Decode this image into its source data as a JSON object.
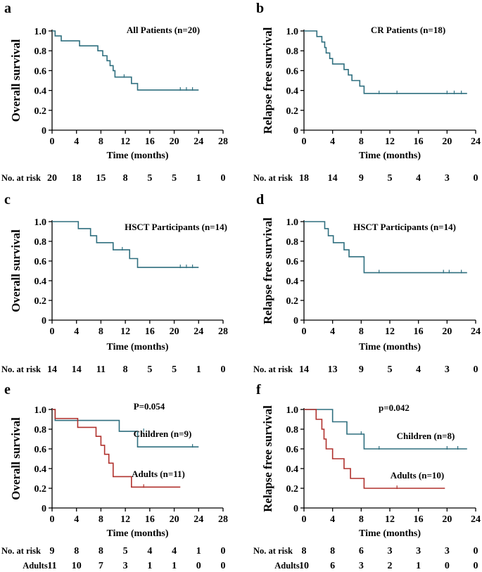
{
  "chart_data": [
    {
      "type": "line",
      "panel": "a",
      "ylabel": "Overall survival",
      "xlabel": "Time (months)",
      "xlim": [
        0,
        28
      ],
      "xticks": [
        0,
        4,
        8,
        12,
        16,
        20,
        24,
        28
      ],
      "ylim": [
        0,
        1.0
      ],
      "yticks": [
        "0",
        "0.2",
        "0.4",
        "0.6",
        "0.8",
        "1.0"
      ],
      "annotation": "All Patients (n=20)",
      "series": [
        {
          "name": "All Patients",
          "color": "#2f6f7f",
          "steps": [
            [
              0,
              1.0
            ],
            [
              0.5,
              0.95
            ],
            [
              1.5,
              0.9
            ],
            [
              4.5,
              0.85
            ],
            [
              7.5,
              0.8
            ],
            [
              8.3,
              0.75
            ],
            [
              9.0,
              0.7
            ],
            [
              9.5,
              0.65
            ],
            [
              10.0,
              0.6
            ],
            [
              10.3,
              0.535
            ],
            [
              13.0,
              0.47
            ],
            [
              14.0,
              0.405
            ],
            [
              24.0,
              0.405
            ]
          ],
          "censors": [
            [
              11.8,
              0.535
            ],
            [
              21.0,
              0.405
            ],
            [
              22.0,
              0.405
            ],
            [
              23.0,
              0.405
            ]
          ]
        }
      ],
      "risk_table": {
        "label": "No. at risk",
        "rows": [
          {
            "label": "",
            "values": [
              "20",
              "18",
              "15",
              "8",
              "5",
              "5",
              "1",
              "0"
            ]
          }
        ]
      }
    },
    {
      "type": "line",
      "panel": "b",
      "ylabel": "Relapse free survival",
      "xlabel": "Time (months)",
      "xlim": [
        0,
        24
      ],
      "xticks": [
        0,
        4,
        8,
        12,
        16,
        20,
        24
      ],
      "ylim": [
        0,
        1.0
      ],
      "yticks": [
        "0",
        "0.2",
        "0.4",
        "0.6",
        "0.8",
        "1.0"
      ],
      "annotation": "CR Patients (n=18)",
      "series": [
        {
          "name": "CR Patients",
          "color": "#2f6f7f",
          "steps": [
            [
              0,
              1.0
            ],
            [
              1.8,
              0.944
            ],
            [
              2.5,
              0.889
            ],
            [
              2.9,
              0.833
            ],
            [
              3.1,
              0.778
            ],
            [
              3.6,
              0.722
            ],
            [
              4.0,
              0.667
            ],
            [
              5.6,
              0.611
            ],
            [
              6.2,
              0.556
            ],
            [
              6.7,
              0.5
            ],
            [
              7.8,
              0.444
            ],
            [
              8.4,
              0.37
            ],
            [
              22.8,
              0.37
            ]
          ],
          "censors": [
            [
              10.5,
              0.37
            ],
            [
              13.0,
              0.37
            ],
            [
              20.0,
              0.37
            ],
            [
              21.0,
              0.37
            ],
            [
              22.0,
              0.37
            ]
          ]
        }
      ],
      "risk_table": {
        "label": "No. at risk",
        "rows": [
          {
            "label": "",
            "values": [
              "18",
              "14",
              "9",
              "5",
              "4",
              "3",
              "0"
            ]
          }
        ]
      }
    },
    {
      "type": "line",
      "panel": "c",
      "ylabel": "Overall survival",
      "xlabel": "Time (months)",
      "xlim": [
        0,
        28
      ],
      "xticks": [
        0,
        4,
        8,
        12,
        16,
        20,
        24,
        28
      ],
      "ylim": [
        0,
        1.0
      ],
      "yticks": [
        "0",
        "0.2",
        "0.4",
        "0.6",
        "0.8",
        "1.0"
      ],
      "annotation": "HSCT Participants  (n=14)",
      "series": [
        {
          "name": "HSCT Participants",
          "color": "#2f6f7f",
          "steps": [
            [
              0,
              1.0
            ],
            [
              4.3,
              0.929
            ],
            [
              6.3,
              0.857
            ],
            [
              7.3,
              0.786
            ],
            [
              10.0,
              0.714
            ],
            [
              12.7,
              0.625
            ],
            [
              14.0,
              0.535
            ],
            [
              24.0,
              0.535
            ]
          ],
          "censors": [
            [
              11.5,
              0.714
            ],
            [
              21.0,
              0.535
            ],
            [
              22.0,
              0.535
            ],
            [
              23.0,
              0.535
            ]
          ]
        }
      ],
      "risk_table": {
        "label": "No. at risk",
        "rows": [
          {
            "label": "",
            "values": [
              "14",
              "14",
              "11",
              "8",
              "5",
              "5",
              "1",
              "0"
            ]
          }
        ]
      }
    },
    {
      "type": "line",
      "panel": "d",
      "ylabel": "Relapse free survival",
      "xlabel": "Time (months)",
      "xlim": [
        0,
        24
      ],
      "xticks": [
        0,
        4,
        8,
        12,
        16,
        20,
        24
      ],
      "ylim": [
        0,
        1.0
      ],
      "yticks": [
        "0",
        "0.2",
        "0.4",
        "0.6",
        "0.8",
        "1.0"
      ],
      "annotation": "HSCT Participants (n=14)",
      "series": [
        {
          "name": "HSCT Participants",
          "color": "#2f6f7f",
          "steps": [
            [
              0,
              1.0
            ],
            [
              2.9,
              0.929
            ],
            [
              3.4,
              0.857
            ],
            [
              4.1,
              0.786
            ],
            [
              5.6,
              0.714
            ],
            [
              6.3,
              0.643
            ],
            [
              8.4,
              0.482
            ],
            [
              22.8,
              0.482
            ]
          ],
          "censors": [
            [
              10.5,
              0.482
            ],
            [
              19.5,
              0.482
            ],
            [
              20.3,
              0.482
            ],
            [
              22.0,
              0.482
            ]
          ]
        }
      ],
      "risk_table": {
        "label": "No. at risk",
        "rows": [
          {
            "label": "",
            "values": [
              "14",
              "13",
              "9",
              "5",
              "4",
              "3",
              "0"
            ]
          }
        ]
      }
    },
    {
      "type": "line",
      "panel": "e",
      "ylabel": "Overall survival",
      "xlabel": "Time (months)",
      "xlim": [
        0,
        28
      ],
      "xticks": [
        0,
        4,
        8,
        12,
        16,
        20,
        24,
        28
      ],
      "ylim": [
        0,
        1.0
      ],
      "yticks": [
        "0",
        "0.2",
        "0.4",
        "0.6",
        "0.8",
        "1.0"
      ],
      "annotation": "P=0.054",
      "series": [
        {
          "name": "Children (n=9)",
          "color": "#2f6f7f",
          "steps": [
            [
              0,
              1.0
            ],
            [
              0.5,
              0.889
            ],
            [
              11.0,
              0.778
            ],
            [
              14.0,
              0.62
            ],
            [
              24.0,
              0.62
            ]
          ],
          "censors": [
            [
              15.0,
              0.778
            ],
            [
              23.0,
              0.62
            ]
          ]
        },
        {
          "name": "Adults (n=11)",
          "color": "#b0312d",
          "steps": [
            [
              0,
              1.0
            ],
            [
              0.5,
              0.909
            ],
            [
              4.2,
              0.818
            ],
            [
              7.2,
              0.727
            ],
            [
              8.0,
              0.636
            ],
            [
              8.6,
              0.545
            ],
            [
              9.3,
              0.455
            ],
            [
              10.0,
              0.318
            ],
            [
              13.0,
              0.212
            ],
            [
              21.0,
              0.212
            ]
          ],
          "censors": [
            [
              15.0,
              0.212
            ]
          ]
        }
      ],
      "risk_table": {
        "label": "No. at risk",
        "rows": [
          {
            "label": "",
            "values": [
              "9",
              "8",
              "8",
              "5",
              "4",
              "4",
              "1",
              "0"
            ]
          },
          {
            "label": "Adults",
            "values": [
              "11",
              "10",
              "7",
              "3",
              "1",
              "1",
              "0",
              "0"
            ]
          }
        ]
      }
    },
    {
      "type": "line",
      "panel": "f",
      "ylabel": "Relapse free survival",
      "xlabel": "Time (months)",
      "xlim": [
        0,
        24
      ],
      "xticks": [
        0,
        4,
        8,
        12,
        16,
        20,
        24
      ],
      "ylim": [
        0,
        1.0
      ],
      "yticks": [
        "0",
        "0.2",
        "0.4",
        "0.6",
        "0.8",
        "1.0"
      ],
      "annotation": "p=0.042",
      "series": [
        {
          "name": "Children (n=8)",
          "color": "#2f6f7f",
          "steps": [
            [
              0,
              1.0
            ],
            [
              4.0,
              0.875
            ],
            [
              6.0,
              0.75
            ],
            [
              8.4,
              0.6
            ],
            [
              22.8,
              0.6
            ]
          ],
          "censors": [
            [
              8.0,
              0.75
            ],
            [
              10.5,
              0.6
            ],
            [
              20.0,
              0.6
            ],
            [
              21.5,
              0.6
            ]
          ]
        },
        {
          "name": "Adults (n=10)",
          "color": "#b0312d",
          "steps": [
            [
              0,
              1.0
            ],
            [
              1.7,
              0.9
            ],
            [
              2.5,
              0.8
            ],
            [
              2.8,
              0.7
            ],
            [
              3.1,
              0.6
            ],
            [
              4.0,
              0.5
            ],
            [
              5.6,
              0.4
            ],
            [
              6.5,
              0.3
            ],
            [
              8.4,
              0.2
            ],
            [
              19.7,
              0.2
            ]
          ],
          "censors": [
            [
              13.0,
              0.2
            ]
          ]
        }
      ],
      "risk_table": {
        "label": "No. at risk",
        "rows": [
          {
            "label": "",
            "values": [
              "8",
              "8",
              "6",
              "3",
              "3",
              "3",
              "0"
            ]
          },
          {
            "label": "Adults",
            "values": [
              "10",
              "6",
              "3",
              "2",
              "1",
              "0",
              "0"
            ]
          }
        ]
      }
    }
  ]
}
